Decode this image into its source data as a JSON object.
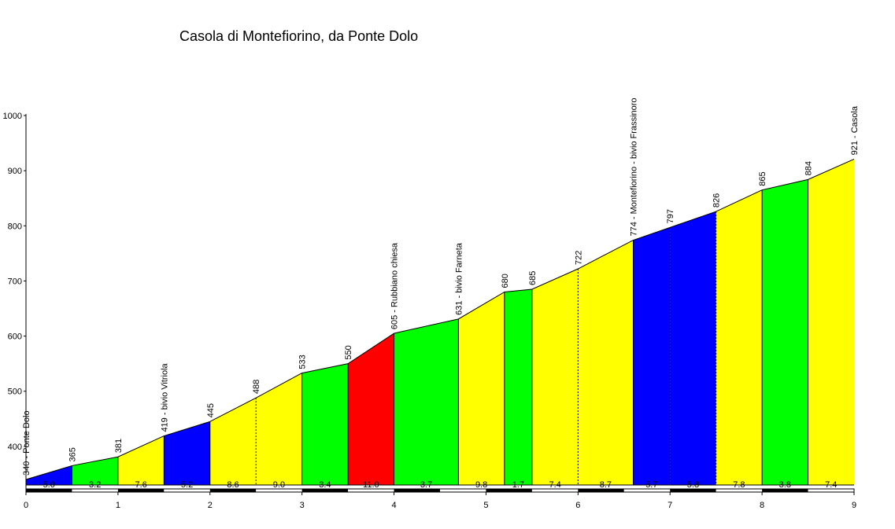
{
  "chart_data": {
    "type": "area",
    "title": "Casola di Montefiorino, da Ponte Dolo",
    "xlabel": "",
    "ylabel": "",
    "xlim": [
      0,
      9
    ],
    "ylim": [
      320,
      1000
    ],
    "x_ticks": [
      "0",
      "1",
      "2",
      "3",
      "4",
      "5",
      "6",
      "7",
      "8",
      "9"
    ],
    "y_ticks": [
      "400",
      "500",
      "600",
      "700",
      "800",
      "900",
      "1000"
    ],
    "points": [
      {
        "x": 0.0,
        "y": 340,
        "label": "340 - Ponte Dolo"
      },
      {
        "x": 0.5,
        "y": 365,
        "label": "365"
      },
      {
        "x": 1.0,
        "y": 381,
        "label": "381"
      },
      {
        "x": 1.5,
        "y": 419,
        "label": "419 - bivio Vitriola"
      },
      {
        "x": 2.0,
        "y": 445,
        "label": "445"
      },
      {
        "x": 2.5,
        "y": 488,
        "label": "488"
      },
      {
        "x": 3.0,
        "y": 533,
        "label": "533"
      },
      {
        "x": 3.5,
        "y": 550,
        "label": "550"
      },
      {
        "x": 4.0,
        "y": 605,
        "label": "605 - Rubbiano chiesa"
      },
      {
        "x": 4.7,
        "y": 631,
        "label": "631 - bivio Farneta"
      },
      {
        "x": 5.2,
        "y": 680,
        "label": "680"
      },
      {
        "x": 5.5,
        "y": 685,
        "label": "685"
      },
      {
        "x": 6.0,
        "y": 722,
        "label": "722"
      },
      {
        "x": 6.6,
        "y": 774,
        "label": "774 - Montefiorino - bivio Frassinoro"
      },
      {
        "x": 7.0,
        "y": 797,
        "label": "797"
      },
      {
        "x": 7.5,
        "y": 826,
        "label": "826"
      },
      {
        "x": 8.0,
        "y": 865,
        "label": "865"
      },
      {
        "x": 8.5,
        "y": 884,
        "label": "884"
      },
      {
        "x": 9.0,
        "y": 921,
        "label": "921 - Casola"
      }
    ],
    "segments": [
      {
        "from": 0.0,
        "to": 0.5,
        "gradient": "5.0",
        "color": "#0000ff",
        "divider": "solid"
      },
      {
        "from": 0.5,
        "to": 1.0,
        "gradient": "3.2",
        "color": "#00ff00",
        "divider": "solid"
      },
      {
        "from": 1.0,
        "to": 1.5,
        "gradient": "7.6",
        "color": "#ffff00",
        "divider": "solid"
      },
      {
        "from": 1.5,
        "to": 2.0,
        "gradient": "5.2",
        "color": "#0000ff",
        "divider": "solid"
      },
      {
        "from": 2.0,
        "to": 2.5,
        "gradient": "8.6",
        "color": "#ffff00",
        "divider": "dashed"
      },
      {
        "from": 2.5,
        "to": 3.0,
        "gradient": "9.0",
        "color": "#ffff00",
        "divider": "solid"
      },
      {
        "from": 3.0,
        "to": 3.5,
        "gradient": "3.4",
        "color": "#00ff00",
        "divider": "solid"
      },
      {
        "from": 3.5,
        "to": 4.0,
        "gradient": "11.0",
        "color": "#ff0000",
        "divider": "solid"
      },
      {
        "from": 4.0,
        "to": 4.7,
        "gradient": "3.7",
        "color": "#00ff00",
        "divider": "solid"
      },
      {
        "from": 4.7,
        "to": 5.2,
        "gradient": "9.8",
        "color": "#ffff00",
        "divider": "solid"
      },
      {
        "from": 5.2,
        "to": 5.5,
        "gradient": "1.7",
        "color": "#00ff00",
        "divider": "solid"
      },
      {
        "from": 5.5,
        "to": 6.0,
        "gradient": "7.4",
        "color": "#ffff00",
        "divider": "dashed"
      },
      {
        "from": 6.0,
        "to": 6.6,
        "gradient": "8.7",
        "color": "#ffff00",
        "divider": "solid"
      },
      {
        "from": 6.6,
        "to": 7.0,
        "gradient": "5.7",
        "color": "#0000ff",
        "divider": "dashed"
      },
      {
        "from": 7.0,
        "to": 7.5,
        "gradient": "5.8",
        "color": "#0000ff",
        "divider": "dashed"
      },
      {
        "from": 7.5,
        "to": 8.0,
        "gradient": "7.8",
        "color": "#ffff00",
        "divider": "solid"
      },
      {
        "from": 8.0,
        "to": 8.5,
        "gradient": "3.8",
        "color": "#00ff00",
        "divider": "solid"
      },
      {
        "from": 8.5,
        "to": 9.0,
        "gradient": "7.4",
        "color": "#ffff00",
        "divider": "solid"
      }
    ],
    "km_bar": [
      "#000000",
      "#ffffff"
    ],
    "grid": false,
    "legend": "none"
  }
}
